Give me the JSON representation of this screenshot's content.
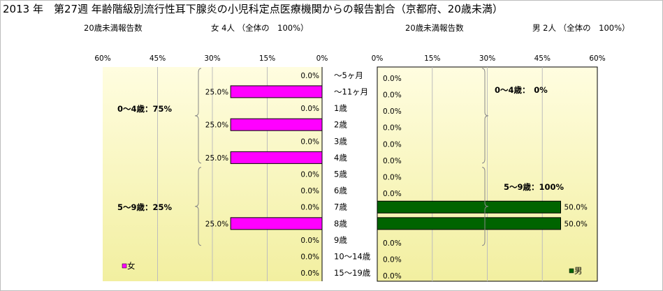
{
  "title": "2013 年　第27週 年齢階級別流行性耳下腺炎の小児科定点医療機関からの報告割合（京都府、20歳未満）",
  "left_header": {
    "label": "20歳未満報告数",
    "count": "女 4人 （全体の　100%）"
  },
  "right_header": {
    "label": "20歳未満報告数",
    "count": "男 2人 （全体の　100%）"
  },
  "colors": {
    "female": "#ff00ff",
    "male": "#006400",
    "plot_bg_top": "#fffde0",
    "plot_bg_bottom": "#f2efa0"
  },
  "chart_data": [
    {
      "type": "bar",
      "orientation": "horizontal-reversed",
      "series": [
        {
          "name": "女",
          "values": [
            0,
            25,
            0,
            25,
            0,
            25,
            0,
            0,
            0,
            25,
            0,
            0,
            0
          ]
        }
      ],
      "categories": [
        "～5ヶ月",
        "～11ヶ月",
        "1歳",
        "2歳",
        "3歳",
        "4歳",
        "5歳",
        "6歳",
        "7歳",
        "8歳",
        "9歳",
        "10～14歳",
        "15～19歳"
      ],
      "data_labels": [
        "0.0%",
        "25.0%",
        "0.0%",
        "25.0%",
        "0.0%",
        "25.0%",
        "0.0%",
        "0.0%",
        "0.0%",
        "25.0%",
        "0.0%",
        "0.0%",
        "0.0%"
      ],
      "xlim": [
        0,
        60
      ],
      "ticks": [
        "0%",
        "15%",
        "30%",
        "45%",
        "60%"
      ],
      "grid": true,
      "legend": "bottom-left",
      "group_labels": [
        "0～4歳：75%",
        "5～9歳：25%"
      ]
    },
    {
      "type": "bar",
      "orientation": "horizontal",
      "series": [
        {
          "name": "男",
          "values": [
            0,
            0,
            0,
            0,
            0,
            0,
            0,
            0,
            50,
            50,
            0,
            0,
            0
          ]
        }
      ],
      "categories": [
        "～5ヶ月",
        "～11ヶ月",
        "1歳",
        "2歳",
        "3歳",
        "4歳",
        "5歳",
        "6歳",
        "7歳",
        "8歳",
        "9歳",
        "10～14歳",
        "15～19歳"
      ],
      "data_labels": [
        "0.0%",
        "0.0%",
        "0.0%",
        "0.0%",
        "0.0%",
        "0.0%",
        "0.0%",
        "0.0%",
        "50.0%",
        "50.0%",
        "0.0%",
        "0.0%",
        "0.0%"
      ],
      "xlim": [
        0,
        60
      ],
      "ticks": [
        "0%",
        "15%",
        "30%",
        "45%",
        "60%"
      ],
      "grid": true,
      "legend": "bottom-right",
      "group_labels": [
        "0～4歳：　0%",
        "5～9歳：100%"
      ]
    }
  ]
}
